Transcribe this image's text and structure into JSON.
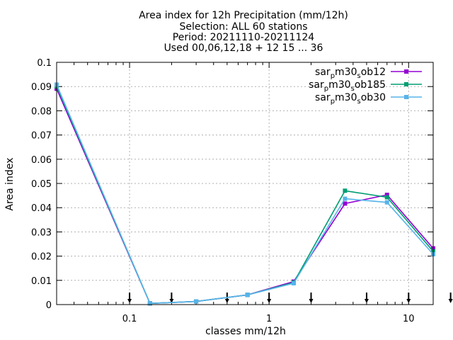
{
  "chart_data": {
    "type": "line",
    "title_lines": [
      "Area index  for 12h Precipitation (mm/12h)",
      "Selection: ALL      60 stations",
      "Period: 20211110-20211124",
      "Used 00,06,12,18 + 12 15 ... 36"
    ],
    "xlabel": "classes mm/12h",
    "ylabel": "Area index",
    "x_scale": "log",
    "xlim": [
      0.03,
      15
    ],
    "ylim": [
      0,
      0.1
    ],
    "grid": true,
    "legend_position": "top-right",
    "x_ticks": [
      {
        "value": 0.1,
        "label": "0.1"
      },
      {
        "value": 1,
        "label": "1"
      },
      {
        "value": 10,
        "label": "10"
      }
    ],
    "y_ticks": [
      {
        "value": 0,
        "label": "0"
      },
      {
        "value": 0.01,
        "label": "0.01"
      },
      {
        "value": 0.02,
        "label": "0.02"
      },
      {
        "value": 0.03,
        "label": "0.03"
      },
      {
        "value": 0.04,
        "label": "0.04"
      },
      {
        "value": 0.05,
        "label": "0.05"
      },
      {
        "value": 0.06,
        "label": "0.06"
      },
      {
        "value": 0.07,
        "label": "0.07"
      },
      {
        "value": 0.08,
        "label": "0.08"
      },
      {
        "value": 0.09,
        "label": "0.09"
      },
      {
        "value": 0.1,
        "label": "0.1"
      }
    ],
    "class_markers": [
      0.1,
      0.2,
      0.5,
      1,
      2,
      5,
      10,
      20
    ],
    "series": [
      {
        "name": "sar_p m30_s ob12",
        "name_parts": [
          "sar",
          "p",
          "m30",
          "s",
          "ob12"
        ],
        "color": "#9400d3",
        "x": [
          0.03,
          0.14,
          0.3,
          0.7,
          1.5,
          3.5,
          7.0,
          15.0
        ],
        "y": [
          0.0891,
          0.0005,
          0.0013,
          0.004,
          0.0095,
          0.0417,
          0.0453,
          0.0232
        ]
      },
      {
        "name": "sar_p m30_s ob185",
        "name_parts": [
          "sar",
          "p",
          "m30",
          "s",
          "ob185"
        ],
        "color": "#009e73",
        "x": [
          0.03,
          0.14,
          0.3,
          0.7,
          1.5,
          3.5,
          7.0,
          15.0
        ],
        "y": [
          0.0901,
          0.0005,
          0.0013,
          0.004,
          0.0091,
          0.047,
          0.0443,
          0.022
        ]
      },
      {
        "name": "sar_p m30_s ob30",
        "name_parts": [
          "sar",
          "p",
          "m30",
          "s",
          "ob30"
        ],
        "color": "#56b4e9",
        "x": [
          0.03,
          0.14,
          0.3,
          0.7,
          1.5,
          3.5,
          7.0,
          15.0
        ],
        "y": [
          0.0908,
          0.0005,
          0.0013,
          0.004,
          0.0088,
          0.0437,
          0.0422,
          0.0208
        ]
      }
    ]
  }
}
